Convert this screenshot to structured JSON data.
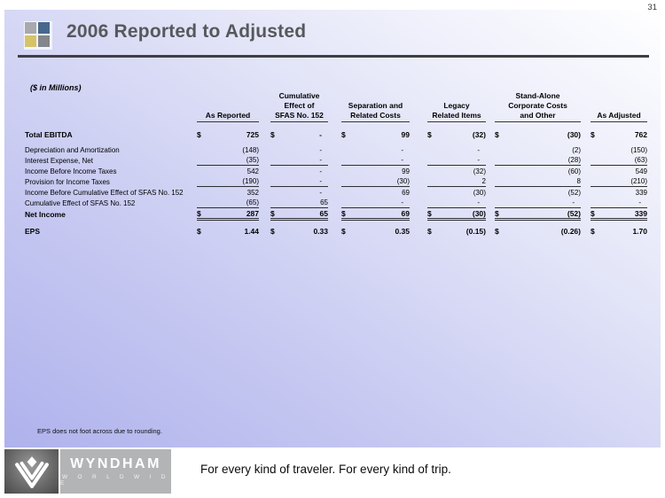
{
  "page_number": "31",
  "title": "2006 Reported to Adjusted",
  "units_note": "($ in Millions)",
  "table": {
    "columns": [
      "As Reported",
      "Cumulative\nEffect of\nSFAS No. 152",
      "Separation and\nRelated Costs",
      "Legacy\nRelated Items",
      "Stand-Alone\nCorporate Costs\nand Other",
      "As Adjusted"
    ],
    "rows": [
      {
        "label": "Total EBITDA",
        "bold": true,
        "dollar": true,
        "cls": "r-ebitda",
        "line": "none",
        "values": [
          "725",
          "-",
          "99",
          "(32)",
          "(30)",
          "762"
        ]
      },
      {
        "label": "Depreciation and Amortization",
        "bold": false,
        "dollar": false,
        "line": "none",
        "values": [
          "(148)",
          "-",
          "-",
          "-",
          "(2)",
          "(150)"
        ]
      },
      {
        "label": "Interest Expense, Net",
        "bold": false,
        "dollar": false,
        "line": "under",
        "values": [
          "(35)",
          "-",
          "-",
          "-",
          "(28)",
          "(63)"
        ]
      },
      {
        "label": "Income Before Income Taxes",
        "bold": false,
        "dollar": false,
        "line": "none",
        "values": [
          "542",
          "-",
          "99",
          "(32)",
          "(60)",
          "549"
        ]
      },
      {
        "label": "Provision for Income Taxes",
        "bold": false,
        "dollar": false,
        "line": "under",
        "values": [
          "(190)",
          "-",
          "(30)",
          "2",
          "8",
          "(210)"
        ]
      },
      {
        "label": "Income Before Cumulative Effect of SFAS No. 152",
        "bold": false,
        "dollar": false,
        "line": "none",
        "values": [
          "352",
          "-",
          "69",
          "(30)",
          "(52)",
          "339"
        ]
      },
      {
        "label": "Cumulative Effect of SFAS No. 152",
        "bold": false,
        "dollar": false,
        "line": "under",
        "values": [
          "(65)",
          "65",
          "-",
          "-",
          "-",
          "-"
        ]
      },
      {
        "label": "Net Income",
        "bold": true,
        "dollar": true,
        "cls": "r-net",
        "line": "total",
        "values": [
          "287",
          "65",
          "69",
          "(30)",
          "(52)",
          "339"
        ]
      },
      {
        "label": "EPS",
        "bold": true,
        "dollar": true,
        "cls": "r-eps",
        "line": "none",
        "values": [
          "1.44",
          "0.33",
          "0.35",
          "(0.15)",
          "(0.26)",
          "1.70"
        ]
      }
    ]
  },
  "footnote": "EPS does not foot across due to rounding.",
  "footer": {
    "wordmark": "WYNDHAM",
    "wordmark_sub": "W O R L D W I D E",
    "tagline": "For every kind of traveler. For every kind of trip."
  },
  "colors": {
    "accent_gray": "#a7a9ae",
    "accent_blue": "#47688c",
    "accent_yellow": "#d6c267",
    "accent_gray_dark": "#83868b",
    "panel_lavender": "#afb2ec",
    "rule_dark": "#3e3e46",
    "title_gray": "#57585a"
  }
}
